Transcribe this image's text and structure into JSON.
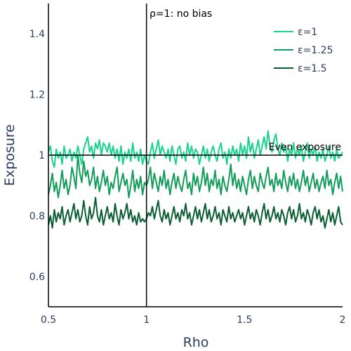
{
  "chart_data": {
    "type": "line",
    "xlabel": "Rho",
    "ylabel": "Exposure",
    "xlim": [
      0.5,
      2.0
    ],
    "ylim": [
      0.5,
      1.5
    ],
    "x_ticks": [
      0.5,
      1,
      1.5,
      2
    ],
    "x_tick_labels": [
      "0.5",
      "1",
      "1.5",
      "2"
    ],
    "y_ticks": [
      0.6,
      0.8,
      1.0,
      1.2,
      1.4
    ],
    "y_tick_labels": [
      "0.6",
      "0.8",
      "1",
      "1.2",
      "1.4"
    ],
    "grid": false,
    "legend_position": "top-right",
    "reference_lines": [
      {
        "orientation": "vertical",
        "value": 1,
        "label": "ρ=1: no bias"
      },
      {
        "orientation": "horizontal",
        "value": 1,
        "label": "Even exposure"
      }
    ],
    "x": [
      0.5,
      0.51,
      0.52,
      0.53,
      0.54,
      0.55,
      0.56,
      0.57,
      0.58,
      0.59,
      0.6,
      0.61,
      0.62,
      0.63,
      0.64,
      0.65,
      0.66,
      0.67,
      0.68,
      0.69,
      0.7,
      0.71,
      0.72,
      0.73,
      0.74,
      0.75,
      0.76,
      0.77,
      0.78,
      0.79,
      0.8,
      0.81,
      0.82,
      0.83,
      0.84,
      0.85,
      0.86,
      0.87,
      0.88,
      0.89,
      0.9,
      0.91,
      0.92,
      0.93,
      0.94,
      0.95,
      0.96,
      0.97,
      0.98,
      0.99,
      1,
      1.01,
      1.02,
      1.03,
      1.04,
      1.05,
      1.06,
      1.07,
      1.08,
      1.09,
      1.1,
      1.11,
      1.12,
      1.13,
      1.14,
      1.15,
      1.16,
      1.17,
      1.18,
      1.19,
      1.2,
      1.21,
      1.22,
      1.23,
      1.24,
      1.25,
      1.26,
      1.27,
      1.28,
      1.29,
      1.3,
      1.31,
      1.32,
      1.33,
      1.34,
      1.35,
      1.36,
      1.37,
      1.38,
      1.39,
      1.4,
      1.41,
      1.42,
      1.43,
      1.44,
      1.45,
      1.46,
      1.47,
      1.48,
      1.49,
      1.5,
      1.51,
      1.52,
      1.53,
      1.54,
      1.55,
      1.56,
      1.57,
      1.58,
      1.59,
      1.6,
      1.61,
      1.62,
      1.63,
      1.64,
      1.65,
      1.66,
      1.67,
      1.68,
      1.69,
      1.7,
      1.71,
      1.72,
      1.73,
      1.74,
      1.75,
      1.76,
      1.77,
      1.78,
      1.79,
      1.8,
      1.81,
      1.82,
      1.83,
      1.84,
      1.85,
      1.86,
      1.87,
      1.88,
      1.89,
      1.9,
      1.91,
      1.92,
      1.93,
      1.94,
      1.95,
      1.96,
      1.97,
      1.98,
      1.99,
      2
    ],
    "series": [
      {
        "name": "ε=1",
        "color": "#19d38e",
        "values": [
          1.01,
          1.03,
          0.98,
          0.96,
          1.02,
          0.99,
          1.01,
          0.97,
          1.03,
          0.99,
          1.0,
          1.02,
          0.98,
          1.01,
          0.99,
          1.03,
          1.0,
          0.97,
          1.02,
          1.04,
          1.06,
          1.01,
          1.03,
          0.99,
          1.04,
          1.02,
          1.05,
          1.0,
          1.04,
          1.03,
          1.01,
          1.04,
          1.0,
          1.03,
          0.99,
          1.02,
          0.98,
          1.03,
          0.97,
          1.01,
          0.99,
          1.02,
          0.98,
          1.04,
          0.99,
          1.01,
          0.98,
          1.02,
          0.97,
          1.0,
          0.98,
          0.97,
          1.01,
          1.04,
          0.99,
          1.02,
          1.05,
          1.0,
          1.03,
          1.01,
          0.99,
          1.02,
          0.98,
          1.03,
          1.0,
          0.97,
          1.02,
          1.03,
          0.99,
          1.01,
          0.98,
          1.04,
          1.0,
          1.03,
          0.99,
          1.02,
          1.01,
          0.97,
          1.0,
          1.03,
          0.99,
          1.02,
          0.98,
          1.01,
          1.03,
          1.0,
          0.98,
          1.02,
          1.04,
          0.99,
          1.01,
          0.97,
          1.02,
          0.99,
          1.03,
          1.0,
          1.02,
          0.98,
          1.04,
          1.0,
          1.03,
          0.99,
          1.06,
          1.01,
          1.04,
          0.99,
          1.02,
          1.05,
          1.0,
          1.03,
          1.06,
          1.02,
          1.08,
          1.03,
          1.01,
          1.05,
          1.07,
          1.02,
          1.0,
          1.04,
          1.01,
          1.03,
          0.98,
          1.02,
          1.0,
          1.04,
          0.99,
          1.02,
          1.0,
          1.03,
          0.98,
          1.01,
          1.04,
          0.99,
          1.02,
          1.0,
          1.03,
          0.98,
          1.01,
          0.99,
          1.02,
          0.98,
          1.0,
          1.03,
          0.99,
          1.01,
          0.98,
          1.02,
          0.99,
          1.0,
          1.01
        ]
      },
      {
        "name": "ε=1.25",
        "color": "#129e5a",
        "values": [
          0.87,
          0.9,
          0.94,
          0.88,
          0.91,
          0.86,
          0.9,
          0.95,
          0.89,
          0.92,
          0.87,
          0.9,
          0.96,
          0.93,
          0.89,
          1.0,
          0.94,
          0.91,
          0.98,
          0.93,
          0.95,
          0.9,
          0.92,
          0.96,
          0.89,
          0.93,
          0.88,
          0.91,
          0.95,
          0.9,
          0.93,
          0.87,
          0.91,
          0.89,
          0.93,
          0.96,
          0.88,
          0.91,
          0.94,
          0.9,
          0.92,
          0.86,
          0.9,
          0.95,
          0.88,
          0.92,
          0.89,
          0.93,
          0.87,
          0.91,
          0.9,
          0.92,
          0.96,
          0.89,
          0.94,
          0.91,
          0.88,
          0.93,
          0.9,
          0.95,
          0.89,
          0.92,
          0.87,
          0.91,
          0.94,
          0.89,
          0.93,
          0.9,
          0.88,
          0.92,
          0.95,
          0.89,
          0.91,
          0.87,
          0.94,
          0.9,
          0.93,
          0.88,
          0.91,
          0.96,
          0.9,
          0.94,
          0.88,
          0.92,
          0.9,
          0.95,
          0.89,
          0.92,
          0.87,
          0.93,
          0.9,
          0.88,
          0.92,
          0.97,
          0.9,
          0.94,
          0.89,
          0.92,
          0.88,
          0.93,
          0.9,
          0.87,
          0.92,
          0.95,
          0.89,
          0.93,
          0.9,
          0.88,
          0.94,
          0.91,
          0.89,
          0.93,
          0.96,
          0.9,
          0.92,
          0.88,
          0.94,
          0.9,
          0.92,
          0.89,
          0.95,
          0.91,
          0.88,
          0.93,
          0.9,
          0.94,
          0.89,
          0.92,
          0.88,
          0.91,
          0.95,
          0.9,
          0.93,
          0.88,
          0.91,
          0.94,
          0.89,
          0.92,
          0.88,
          0.91,
          0.93,
          0.89,
          0.95,
          0.9,
          0.92,
          0.87,
          0.91,
          0.94,
          0.89,
          0.93,
          0.88
        ]
      },
      {
        "name": "ε=1.5",
        "color": "#0b5e33",
        "values": [
          0.77,
          0.8,
          0.76,
          0.82,
          0.78,
          0.81,
          0.79,
          0.83,
          0.77,
          0.8,
          0.82,
          0.78,
          0.81,
          0.84,
          0.79,
          0.82,
          0.78,
          0.8,
          0.85,
          0.8,
          0.77,
          0.83,
          0.79,
          0.81,
          0.86,
          0.8,
          0.78,
          0.82,
          0.77,
          0.8,
          0.83,
          0.79,
          0.81,
          0.78,
          0.84,
          0.8,
          0.77,
          0.82,
          0.79,
          0.81,
          0.84,
          0.79,
          0.82,
          0.78,
          0.8,
          0.77,
          0.81,
          0.78,
          0.79,
          0.78,
          0.79,
          0.81,
          0.8,
          0.83,
          0.79,
          0.82,
          0.85,
          0.8,
          0.78,
          0.82,
          0.79,
          0.81,
          0.77,
          0.8,
          0.83,
          0.79,
          0.81,
          0.78,
          0.82,
          0.8,
          0.84,
          0.79,
          0.81,
          0.77,
          0.8,
          0.83,
          0.79,
          0.82,
          0.78,
          0.81,
          0.84,
          0.79,
          0.82,
          0.78,
          0.8,
          0.83,
          0.79,
          0.81,
          0.77,
          0.82,
          0.8,
          0.78,
          0.83,
          0.79,
          0.81,
          0.78,
          0.8,
          0.82,
          0.79,
          0.81,
          0.77,
          0.8,
          0.83,
          0.79,
          0.81,
          0.78,
          0.82,
          0.8,
          0.77,
          0.81,
          0.84,
          0.79,
          0.82,
          0.78,
          0.8,
          0.83,
          0.79,
          0.81,
          0.78,
          0.82,
          0.8,
          0.77,
          0.81,
          0.83,
          0.79,
          0.82,
          0.78,
          0.8,
          0.84,
          0.79,
          0.81,
          0.78,
          0.82,
          0.8,
          0.77,
          0.81,
          0.83,
          0.79,
          0.82,
          0.78,
          0.8,
          0.76,
          0.79,
          0.82,
          0.78,
          0.81,
          0.77,
          0.8,
          0.83,
          0.78,
          0.77
        ]
      }
    ]
  }
}
